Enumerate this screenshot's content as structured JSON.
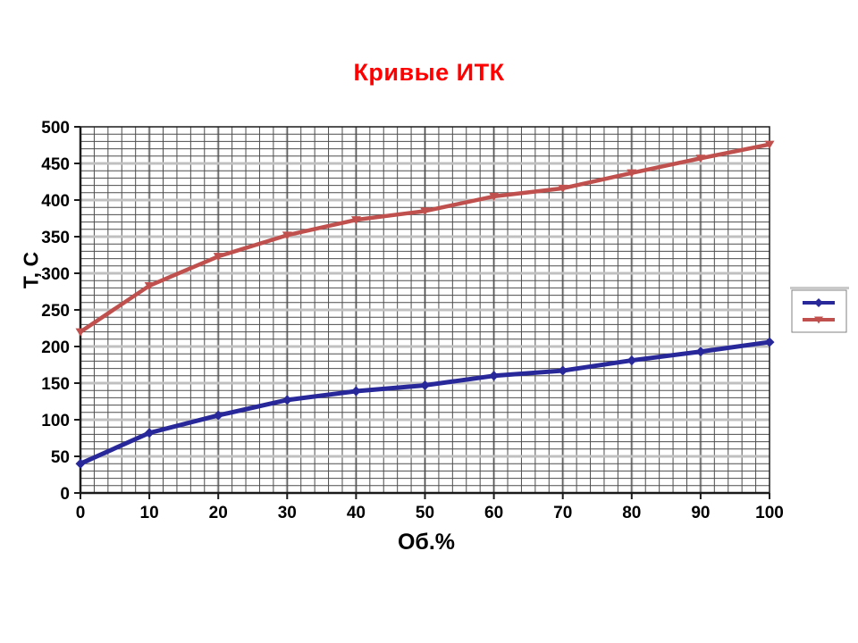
{
  "chart_data": {
    "type": "line",
    "title": "Кривые ИТК",
    "xlabel": "Об.%",
    "ylabel": "Т, С",
    "x": [
      0,
      10,
      20,
      30,
      40,
      50,
      60,
      70,
      80,
      90,
      100
    ],
    "series": [
      {
        "label": "",
        "color": "#28289B",
        "marker": "diamond",
        "line_width": 5,
        "values": [
          40,
          82,
          106,
          127,
          139,
          147,
          160,
          167,
          181,
          193,
          206
        ]
      },
      {
        "label": "",
        "color": "#C0504D",
        "marker": "triangle-down",
        "line_width": 4.5,
        "values": [
          220,
          283,
          323,
          352,
          373,
          385,
          405,
          416,
          437,
          457,
          476
        ]
      }
    ],
    "xlim": [
      0,
      100
    ],
    "ylim": [
      0,
      500
    ],
    "x_tick_labels": [
      "0",
      "10",
      "20",
      "30",
      "40",
      "50",
      "60",
      "70",
      "80",
      "90",
      "100"
    ],
    "y_tick_labels": [
      "0",
      "50",
      "100",
      "150",
      "200",
      "250",
      "300",
      "350",
      "400",
      "450",
      "500"
    ],
    "x_major_step": 10,
    "x_minor_step": 2,
    "y_major_step": 50,
    "y_minor_step": 10,
    "grid": "major-and-minor",
    "legend": {
      "position": "right",
      "entries": [
        {
          "label": "",
          "color": "#28289B",
          "marker": "diamond"
        },
        {
          "label": "",
          "color": "#C0504D",
          "marker": "triangle-down"
        }
      ]
    },
    "style": {
      "title_color": "#FF0000",
      "background": "#FFFFFF",
      "grid_minor_color": "#4D4D4D",
      "grid_major_color": "#C0C0C0",
      "axis_color": "#1A1A1A",
      "legend_border_color": "#808080",
      "legend_shadow_color": "#C9C9C9"
    }
  }
}
